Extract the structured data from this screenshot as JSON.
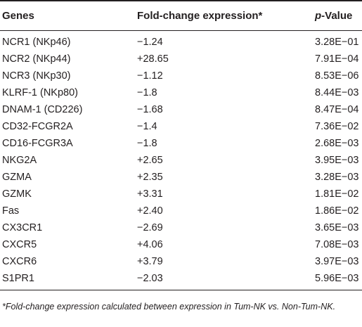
{
  "table": {
    "headers": {
      "genes": "Genes",
      "fold_change": "Fold-change expression*",
      "p_prefix": "p",
      "p_suffix": "-Value"
    },
    "rows": [
      {
        "gene": "NCR1 (NKp46)",
        "fold": "−1.24",
        "p": "3.28E−01"
      },
      {
        "gene": "NCR2 (NKp44)",
        "fold": "+28.65",
        "p": "7.91E−04"
      },
      {
        "gene": "NCR3 (NKp30)",
        "fold": "−1.12",
        "p": "8.53E−06"
      },
      {
        "gene": "KLRF-1 (NKp80)",
        "fold": "−1.8",
        "p": "8.44E−03"
      },
      {
        "gene": "DNAM-1 (CD226)",
        "fold": "−1.68",
        "p": "8.47E−04"
      },
      {
        "gene": "CD32-FCGR2A",
        "fold": "−1.4",
        "p": "7.36E−02"
      },
      {
        "gene": "CD16-FCGR3A",
        "fold": "−1.8",
        "p": "2.68E−03"
      },
      {
        "gene": "NKG2A",
        "fold": "+2.65",
        "p": "3.95E−03"
      },
      {
        "gene": "GZMA",
        "fold": "+2.35",
        "p": "3.28E−03"
      },
      {
        "gene": "GZMK",
        "fold": "+3.31",
        "p": "1.81E−02"
      },
      {
        "gene": "Fas",
        "fold": "+2.40",
        "p": "1.86E−02"
      },
      {
        "gene": "CX3CR1",
        "fold": "−2.69",
        "p": "3.65E−03"
      },
      {
        "gene": "CXCR5",
        "fold": "+4.06",
        "p": "7.08E−03"
      },
      {
        "gene": "CXCR6",
        "fold": "+3.79",
        "p": "3.97E−03"
      },
      {
        "gene": "S1PR1",
        "fold": "−2.03",
        "p": "5.96E−03"
      }
    ]
  },
  "footnote": "*Fold-change expression calculated between expression in Tum-NK vs. Non-Tum-NK."
}
